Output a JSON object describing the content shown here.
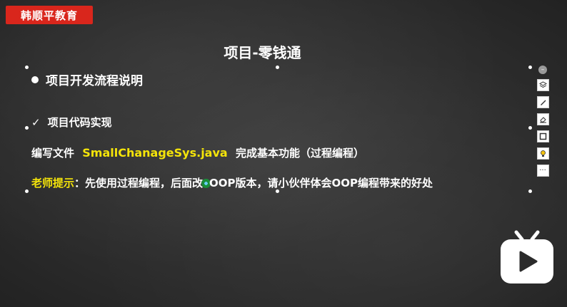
{
  "brand": {
    "label": "韩顺平教育",
    "color": "#d9261c"
  },
  "slide": {
    "title": "项目-零钱通",
    "bullet": "项目开发流程说明",
    "check_item": "项目代码实现",
    "line1": {
      "prefix": "编写文件",
      "filename": "SmallChanageSys.java",
      "suffix": "完成基本功能（过程编程）"
    },
    "line2": {
      "tip_label": "老师提示",
      "text_before": "：先使用过程编程，后面改",
      "text_after": "OOP版本，请小伙伴体会OOP编程带来的好处"
    }
  },
  "toolbar": {
    "tools": [
      "layers-icon",
      "pen-icon",
      "eraser-icon",
      "frame-icon",
      "bulb-icon",
      "more-icon"
    ],
    "more_label": "···"
  },
  "colors": {
    "accent": "#f4e40a",
    "background": "#2b2b2b"
  }
}
